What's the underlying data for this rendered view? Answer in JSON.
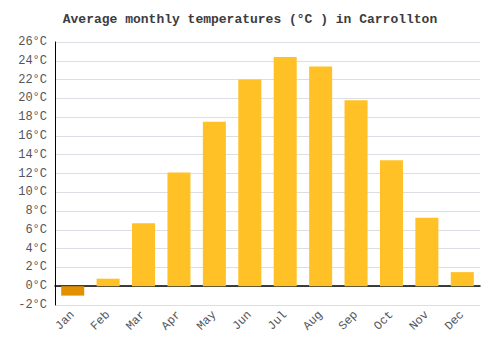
{
  "chart_data": {
    "type": "bar",
    "title": "Average monthly temperatures (°C ) in Carrollton",
    "categories": [
      "Jan",
      "Feb",
      "Mar",
      "Apr",
      "May",
      "Jun",
      "Jul",
      "Aug",
      "Sep",
      "Oct",
      "Nov",
      "Dec"
    ],
    "values": [
      -1.0,
      0.8,
      6.7,
      12.1,
      17.5,
      22.0,
      24.4,
      23.4,
      19.8,
      13.4,
      7.3,
      1.5
    ],
    "colors": [
      "#E09000",
      "#FFC125",
      "#FFC125",
      "#FFC125",
      "#FFC125",
      "#FFC125",
      "#FFC125",
      "#FFC125",
      "#FFC125",
      "#FFC125",
      "#FFC125",
      "#FFC125"
    ],
    "ylim": [
      -2,
      26
    ],
    "yticks": [
      {
        "value": -2,
        "label": "-2°C"
      },
      {
        "value": 0,
        "label": "0°C"
      },
      {
        "value": 2,
        "label": "2°C"
      },
      {
        "value": 4,
        "label": "4°C"
      },
      {
        "value": 6,
        "label": "6°C"
      },
      {
        "value": 8,
        "label": "8°C"
      },
      {
        "value": 10,
        "label": "10°C"
      },
      {
        "value": 12,
        "label": "12°C"
      },
      {
        "value": 14,
        "label": "14°C"
      },
      {
        "value": 16,
        "label": "16°C"
      },
      {
        "value": 18,
        "label": "18°C"
      },
      {
        "value": 20,
        "label": "20°C"
      },
      {
        "value": 22,
        "label": "22°C"
      },
      {
        "value": 24,
        "label": "24°C"
      },
      {
        "value": 26,
        "label": "26°C"
      }
    ],
    "grid": true
  }
}
